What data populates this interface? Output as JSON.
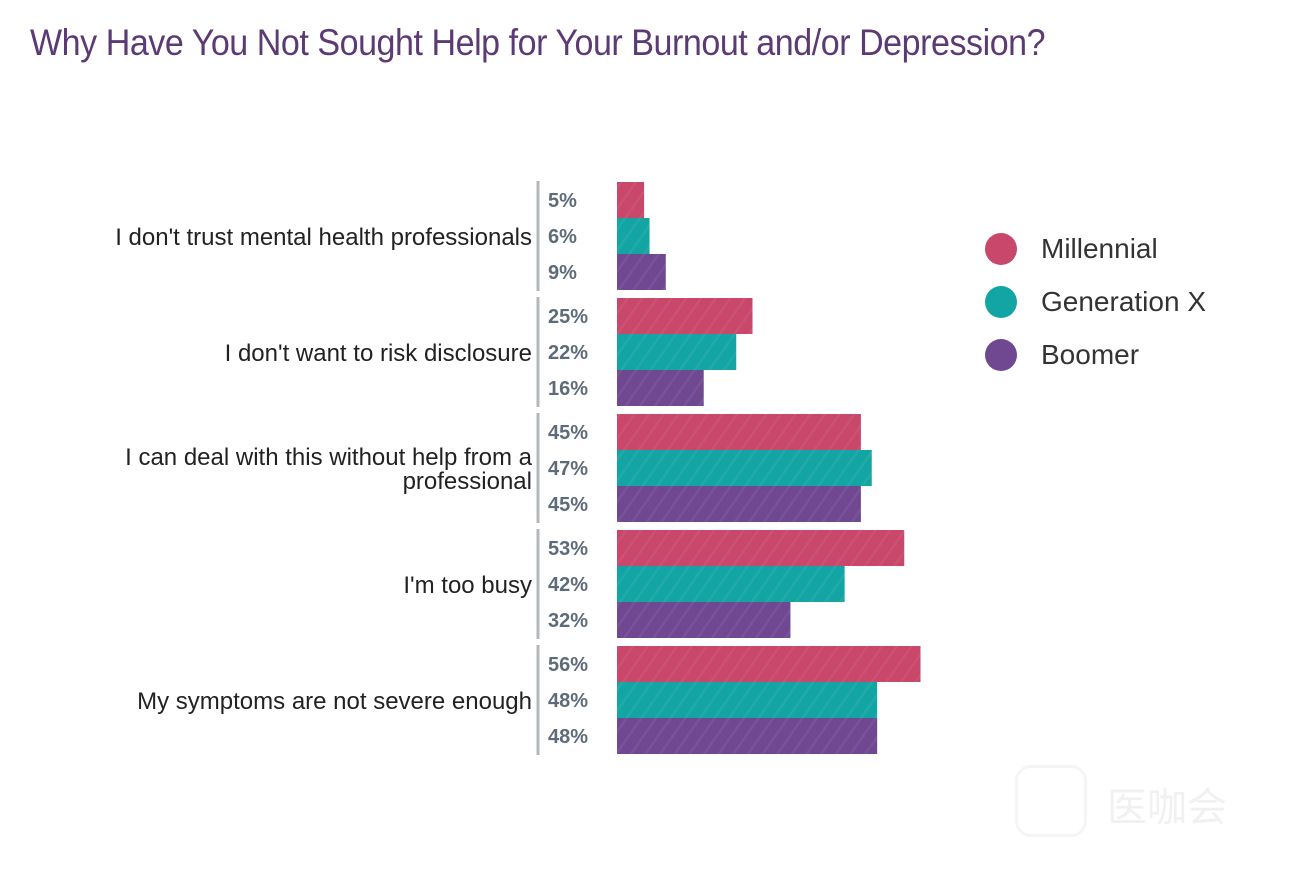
{
  "chart_data": {
    "type": "bar",
    "orientation": "horizontal",
    "title": "Why Have You Not Sought Help for Your Burnout and/or Depression?",
    "categories": [
      [
        "I don't trust mental health professionals"
      ],
      [
        "I don't want to risk disclosure"
      ],
      [
        "I can deal with this without help from a",
        "professional"
      ],
      [
        "I'm too busy"
      ],
      [
        "My symptoms are not severe enough"
      ]
    ],
    "series": [
      {
        "name": "Millennial",
        "color": "#c8476a",
        "values": [
          5,
          25,
          45,
          53,
          56
        ]
      },
      {
        "name": "Generation X",
        "color": "#13a5a3",
        "values": [
          6,
          22,
          47,
          42,
          48
        ]
      },
      {
        "name": "Boomer",
        "color": "#6f4891",
        "values": [
          9,
          16,
          45,
          32,
          48
        ]
      }
    ],
    "value_suffix": "%",
    "xlim": [
      0,
      100
    ],
    "legend_position": "right"
  },
  "watermark": {
    "text": "医咖会"
  }
}
